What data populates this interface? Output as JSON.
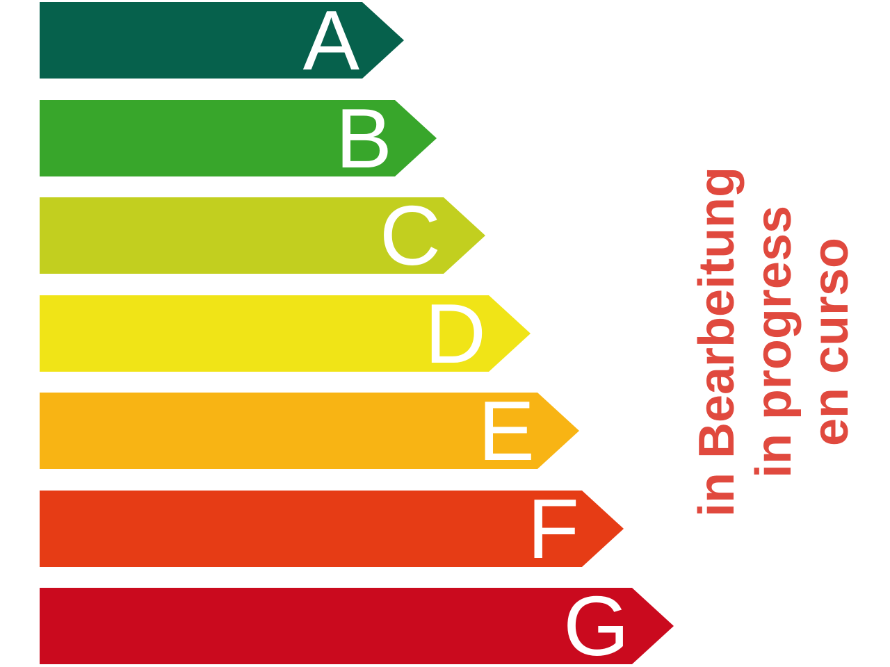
{
  "chart_data": {
    "type": "bar",
    "subtype": "energy-efficiency-rating-scale",
    "orientation": "horizontal",
    "title": "",
    "categories": [
      "A",
      "B",
      "C",
      "D",
      "E",
      "F",
      "G"
    ],
    "series": [
      {
        "name": "arrow-length-px",
        "values": [
          524,
          571,
          641,
          706,
          776,
          840,
          912
        ]
      }
    ],
    "bar_colors": [
      "#06614C",
      "#38A62B",
      "#C2CF1F",
      "#F0E417",
      "#F8B414",
      "#E63C15",
      "#CA0A1E"
    ],
    "category_label_color": "#FFFFFF",
    "legend": "none",
    "grid": "off",
    "axes": "none",
    "annotation": {
      "lines": [
        "in Bearbeitung",
        "in progress",
        "en curso"
      ],
      "color": "#E0493E",
      "rotation_deg": -90
    }
  }
}
